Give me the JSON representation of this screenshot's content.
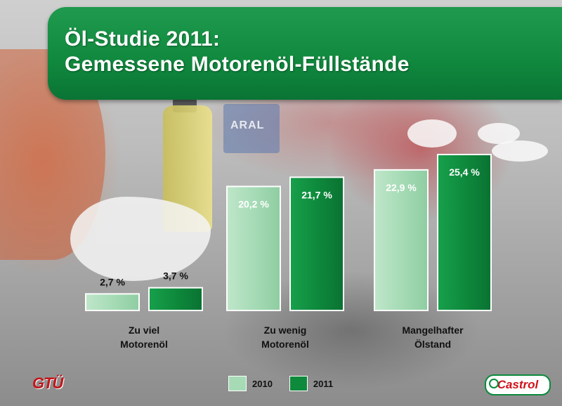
{
  "header": {
    "title_line1": "Öl-Studie 2011:",
    "title_line2": "Gemessene Motorenöl-Füllstände"
  },
  "chart_data": {
    "type": "bar",
    "categories": [
      [
        "Zu viel",
        "Motorenöl"
      ],
      [
        "Zu wenig",
        "Motorenöl"
      ],
      [
        "Mangelhafter",
        "Ölstand"
      ]
    ],
    "series": [
      {
        "name": "2010",
        "values": [
          2.7,
          20.2,
          22.9
        ],
        "labels": [
          "2,7 %",
          "20,2 %",
          "22,9 %"
        ],
        "color": "#a6dbb6"
      },
      {
        "name": "2011",
        "values": [
          3.7,
          21.7,
          25.4
        ],
        "labels": [
          "3,7 %",
          "21,7 %",
          "25,4 %"
        ],
        "color": "#0e8a3c"
      }
    ],
    "ylim": [
      0,
      25.4
    ],
    "legend_position": "bottom-center",
    "grid": false
  },
  "legend": {
    "items": [
      {
        "label": "2010",
        "color": "#a6dbb6"
      },
      {
        "label": "2011",
        "color": "#0e8a3c"
      }
    ]
  },
  "logos": {
    "left": "GTÜ",
    "right": "Castrol"
  },
  "colors": {
    "banner_green": "#118a3f",
    "series_2010": "#a6dbb6",
    "series_2011": "#0e8a3c",
    "castrol_red": "#d0121b"
  }
}
